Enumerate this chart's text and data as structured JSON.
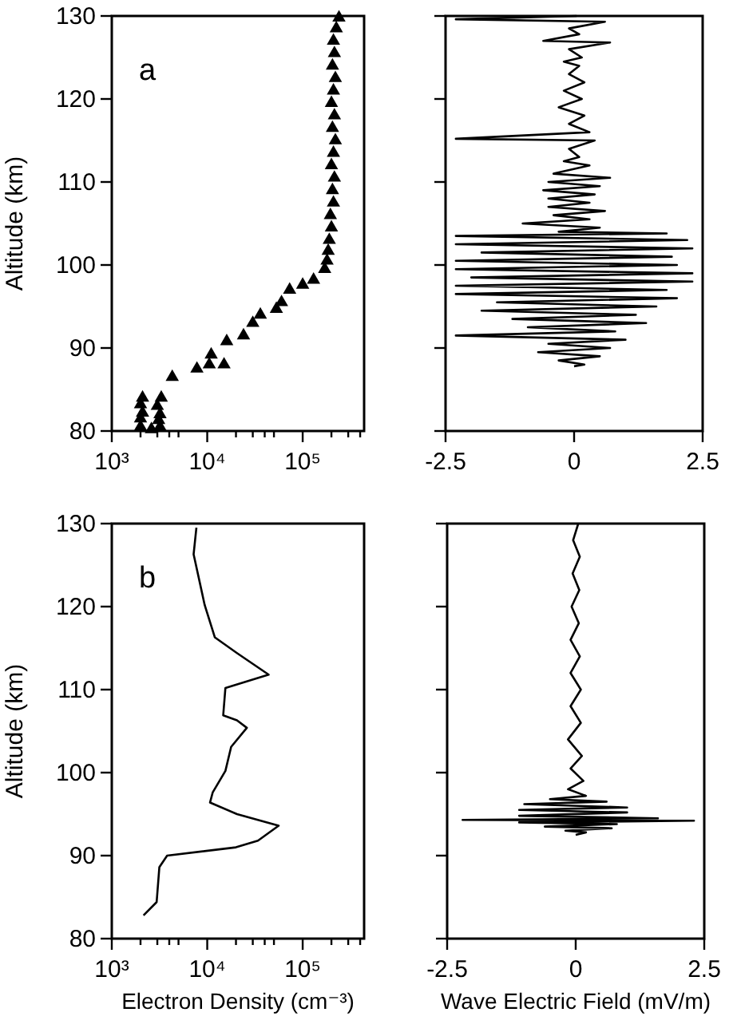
{
  "chart_data": [
    {
      "type": "scatter",
      "ylabel": "Altitude (km)",
      "annotations": [
        "a"
      ],
      "log": "x",
      "marker": "triangle",
      "xlim": [
        1000,
        440000
      ],
      "xticks": [
        {
          "value": 1000,
          "label": "10³"
        },
        {
          "value": 2000,
          "label": null
        },
        {
          "value": 3000,
          "label": null
        },
        {
          "value": 4000,
          "label": null
        },
        {
          "value": 5000,
          "label": null
        },
        {
          "value": 10000,
          "label": "10⁴"
        },
        {
          "value": 20000,
          "label": null
        },
        {
          "value": 30000,
          "label": null
        },
        {
          "value": 40000,
          "label": null
        },
        {
          "value": 50000,
          "label": null
        },
        {
          "value": 100000,
          "label": "10⁵"
        },
        {
          "value": 200000,
          "label": null
        },
        {
          "value": 300000,
          "label": null
        },
        {
          "value": 400000,
          "label": null
        }
      ],
      "ylim": [
        80,
        130
      ],
      "yticks": [
        80,
        90,
        100,
        110,
        120,
        130
      ],
      "series": [
        {
          "color": "#000000",
          "x": [
            2000,
            2000,
            2100,
            2000,
            2100,
            3200,
            3100,
            3200,
            3000,
            3300,
            2600,
            4300,
            7800,
            10500,
            11000,
            15000,
            16000,
            24000,
            30000,
            36000,
            53000,
            60000,
            73000,
            100000,
            130000,
            170000,
            180000,
            185000,
            190000,
            200000,
            195000,
            210000,
            205000,
            215000,
            200000,
            210000,
            220000,
            205000,
            215000,
            200000,
            210000,
            220000,
            205000,
            215000,
            210000,
            225000,
            240000
          ],
          "values": [
            80.5,
            81.5,
            82.2,
            83.2,
            84,
            80.5,
            81.3,
            82,
            83,
            84,
            80.2,
            86.5,
            87.5,
            88,
            89.2,
            88,
            90.8,
            91.5,
            93,
            94,
            94.7,
            95.5,
            97,
            97.6,
            98.2,
            99.5,
            100.5,
            101.7,
            103,
            104.5,
            106,
            107.5,
            109,
            110.5,
            112,
            113.5,
            115,
            116.5,
            118,
            119.5,
            121,
            122.5,
            124,
            125.5,
            127,
            128.5,
            129.8
          ]
        }
      ]
    },
    {
      "type": "line",
      "tick_labels": "x",
      "xlim": [
        -2.5,
        2.5
      ],
      "xticks": [
        -2.5,
        0,
        2.5
      ],
      "ylim": [
        80,
        130
      ],
      "yticks": [
        80,
        90,
        100,
        110,
        120,
        130
      ],
      "series": [
        {
          "color": "#000000",
          "x": [
            0.05,
            -2.3,
            0.6,
            -0.1,
            0.1,
            -0.6,
            0.7,
            -0.1,
            0.15,
            -0.2,
            0.1,
            -0.1,
            0.2,
            -0.2,
            0.15,
            -0.3,
            0.2,
            -0.1,
            0.3,
            -2.3,
            0.4,
            -0.1,
            0.1,
            -0.2,
            0.3,
            -0.4,
            0.7,
            -0.5,
            0.5,
            -0.6,
            0.4,
            -0.5,
            0.3,
            -0.5,
            0.6,
            -0.4,
            0.3,
            -1.0,
            0.5,
            -0.3,
            1.8,
            -2.3,
            2.2,
            -2.3,
            2.3,
            -1.8,
            1.9,
            -2.3,
            2.0,
            -2.3,
            2.3,
            -2.0,
            2.3,
            -2.3,
            1.8,
            -2.3,
            2.0,
            -1.5,
            1.6,
            -1.8,
            1.2,
            -1.2,
            1.4,
            -0.9,
            0.8,
            -2.3,
            1.0,
            -0.5,
            0.7,
            -0.7,
            0.5,
            -0.3,
            0.2,
            0
          ],
          "values": [
            130,
            129.6,
            129.3,
            128.5,
            127.8,
            127,
            126.8,
            126,
            125,
            124.5,
            124,
            123,
            122,
            121,
            120,
            119,
            118,
            117,
            116,
            115.2,
            115,
            114,
            113,
            112.5,
            112,
            111,
            110.5,
            110,
            109.5,
            109,
            108.5,
            108,
            107.5,
            107,
            106.5,
            106,
            105.5,
            105,
            104.5,
            104,
            103.8,
            103.5,
            103,
            102.5,
            102,
            101.5,
            101,
            100.5,
            100,
            99.5,
            99,
            98.5,
            98,
            97.5,
            97,
            96.5,
            96,
            95.5,
            95,
            94.5,
            94,
            93.5,
            93,
            92.5,
            92,
            91.5,
            91,
            90.5,
            90,
            89.5,
            89,
            88.5,
            88,
            87.8
          ]
        }
      ]
    },
    {
      "type": "line",
      "ylabel": "Altitude (km)",
      "xlabel": "Electron Density (cm⁻³)",
      "annotations": [
        "b"
      ],
      "log": "x",
      "xlim": [
        1000,
        440000
      ],
      "xticks": [
        {
          "value": 1000,
          "label": "10³"
        },
        {
          "value": 2000,
          "label": null
        },
        {
          "value": 3000,
          "label": null
        },
        {
          "value": 4000,
          "label": null
        },
        {
          "value": 5000,
          "label": null
        },
        {
          "value": 10000,
          "label": "10⁴"
        },
        {
          "value": 20000,
          "label": null
        },
        {
          "value": 30000,
          "label": null
        },
        {
          "value": 40000,
          "label": null
        },
        {
          "value": 50000,
          "label": null
        },
        {
          "value": 100000,
          "label": "10⁵"
        },
        {
          "value": 200000,
          "label": null
        },
        {
          "value": 300000,
          "label": null
        },
        {
          "value": 400000,
          "label": null
        }
      ],
      "ylim": [
        80,
        130
      ],
      "yticks": [
        80,
        90,
        100,
        110,
        120,
        130
      ],
      "series": [
        {
          "color": "#000000",
          "x": [
            2150,
            2950,
            3150,
            3800,
            20000,
            34000,
            56000,
            20500,
            10700,
            11400,
            15500,
            17800,
            26000,
            20500,
            14700,
            15500,
            44000,
            20500,
            12000,
            9400,
            7200,
            7700
          ],
          "values": [
            82.8,
            84.4,
            88.6,
            90,
            91,
            91.8,
            93.6,
            95,
            96.4,
            97.6,
            100.2,
            103.1,
            105.4,
            106.3,
            106.9,
            110.2,
            111.8,
            114.4,
            116.3,
            120.2,
            126.3,
            129.5
          ]
        }
      ]
    },
    {
      "type": "line",
      "xlabel": "Wave Electric Field (mV/m)",
      "tick_labels": "x",
      "xlim": [
        -2.5,
        2.5
      ],
      "xticks": [
        -2.5,
        0,
        2.5
      ],
      "ylim": [
        80,
        130
      ],
      "yticks": [
        80,
        90,
        100,
        110,
        120,
        130
      ],
      "series": [
        {
          "color": "#000000",
          "x": [
            0.05,
            -0.05,
            0.08,
            -0.06,
            0.07,
            -0.08,
            0.06,
            -0.1,
            0.08,
            -0.1,
            0.1,
            -0.1,
            0.1,
            -0.15,
            0.12,
            -0.1,
            0.15,
            -0.15,
            0.2,
            -0.5,
            0.6,
            -1.0,
            1.0,
            -1.1,
            1.0,
            -1.1,
            1.6,
            -2.2,
            2.3,
            -1.1,
            0.8,
            -0.6,
            0.7,
            -0.2,
            0.2,
            0
          ],
          "values": [
            130,
            128,
            126,
            124,
            122,
            120,
            118,
            116,
            114,
            112,
            110,
            108,
            106,
            104,
            102,
            100.5,
            99,
            98,
            97.2,
            96.8,
            96.5,
            96.2,
            95.8,
            95.5,
            95.2,
            94.8,
            94.5,
            94.3,
            94.2,
            94,
            93.8,
            93.5,
            93.3,
            93,
            92.8,
            92.5
          ]
        }
      ]
    }
  ]
}
